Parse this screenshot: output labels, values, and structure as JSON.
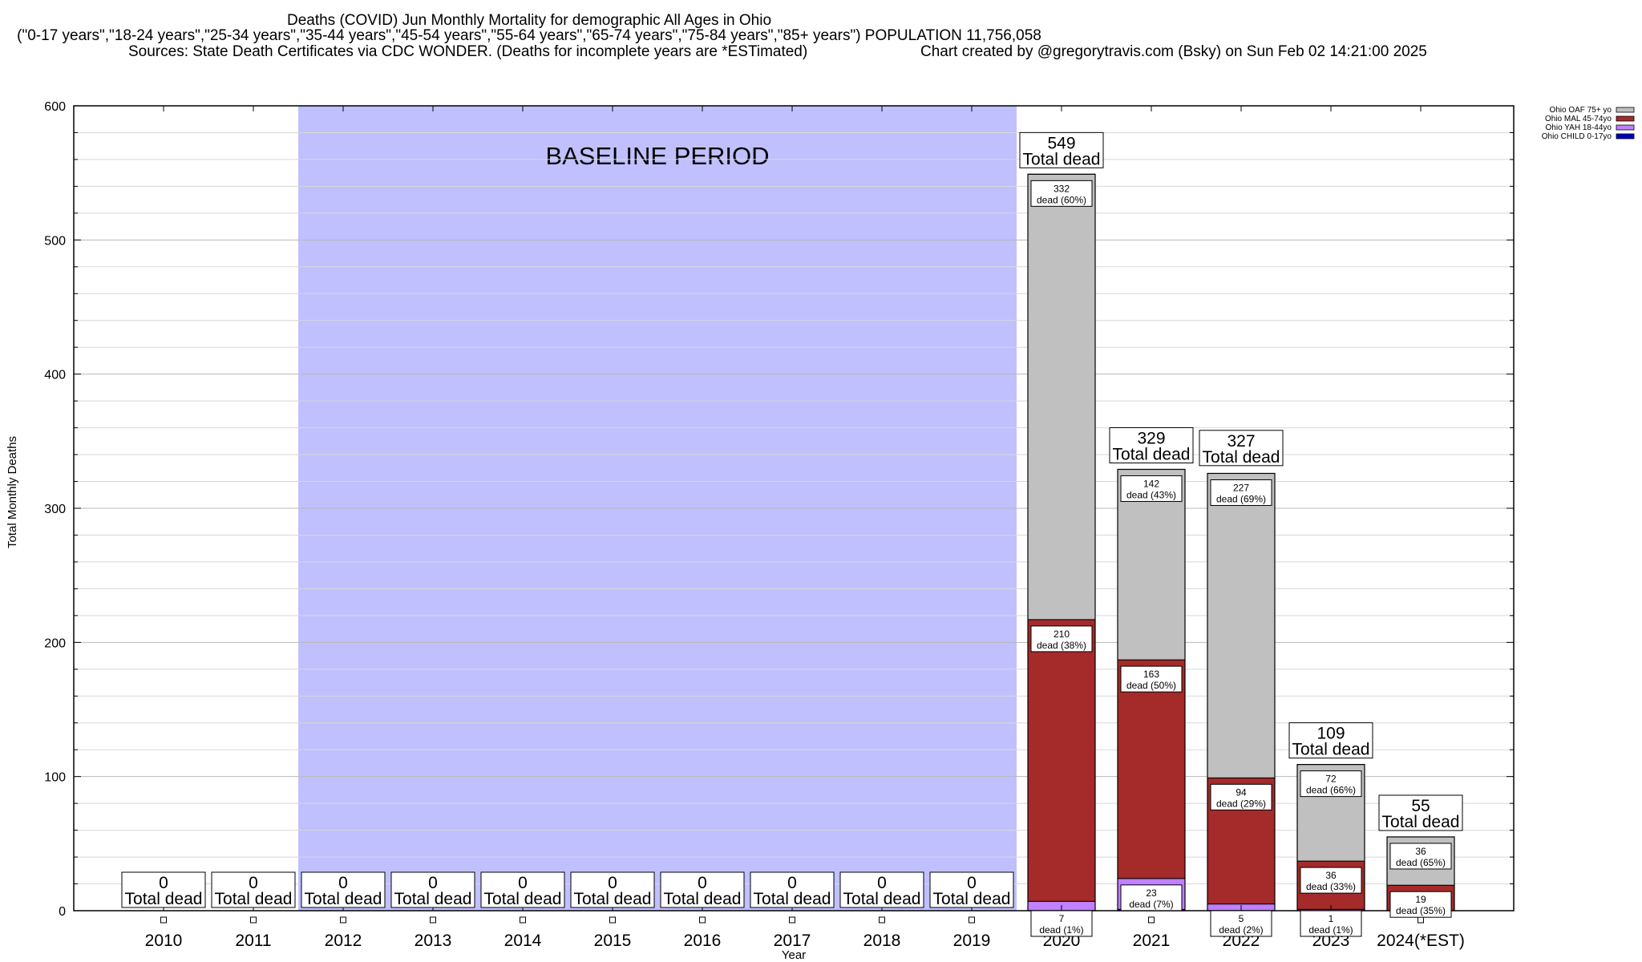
{
  "header": {
    "title_line1": "Deaths (COVID) Jun Monthly Mortality for demographic All Ages in Ohio",
    "title_line2": "(\"0-17 years\",\"18-24 years\",\"25-34 years\",\"35-44 years\",\"45-54 years\",\"55-64 years\",\"65-74 years\",\"75-84 years\",\"85+ years\") POPULATION 11,756,058",
    "sources": "Sources: State Death Certificates via CDC WONDER. (Deaths for incomplete years are *ESTimated)",
    "credit": "Chart created by @gregorytravis.com (Bsky) on Sun Feb 02 14:21:00 2025"
  },
  "chart_data": {
    "type": "bar",
    "stacked": true,
    "xlabel": "Year",
    "ylabel": "Total Monthly Deaths",
    "ylim": [
      0,
      600
    ],
    "y_ticks": [
      0,
      100,
      200,
      300,
      400,
      500,
      600
    ],
    "grid": true,
    "legend_position": "top-right",
    "categories": [
      "2010",
      "2011",
      "2012",
      "2013",
      "2014",
      "2015",
      "2016",
      "2017",
      "2018",
      "2019",
      "2020",
      "2021",
      "2022",
      "2023",
      "2024(*EST)"
    ],
    "totals": [
      0,
      0,
      0,
      0,
      0,
      0,
      0,
      0,
      0,
      0,
      549,
      329,
      327,
      109,
      55
    ],
    "total_suffix": "Total dead",
    "baseline_label": "BASELINE PERIOD",
    "baseline_range": [
      "2012",
      "2019"
    ],
    "series": [
      {
        "name": "Ohio CHILD 0-17yo",
        "color": "#0000c0",
        "values": [
          0,
          0,
          0,
          0,
          0,
          0,
          0,
          0,
          0,
          0,
          0,
          1,
          0,
          0,
          0
        ],
        "labels": [
          null,
          null,
          null,
          null,
          null,
          null,
          null,
          null,
          null,
          null,
          null,
          null,
          null,
          null,
          null
        ]
      },
      {
        "name": "Ohio YAH 18-44yo",
        "color": "#c080ff",
        "values": [
          0,
          0,
          0,
          0,
          0,
          0,
          0,
          0,
          0,
          0,
          7,
          23,
          5,
          1,
          0
        ],
        "labels": [
          null,
          null,
          null,
          null,
          null,
          null,
          null,
          null,
          null,
          null,
          "7 dead (1%)",
          "23 dead (7%)",
          "5 dead (2%)",
          "1 dead (1%)",
          null
        ]
      },
      {
        "name": "Ohio MAL 45-74yo",
        "color": "#a52a2a",
        "values": [
          0,
          0,
          0,
          0,
          0,
          0,
          0,
          0,
          0,
          0,
          210,
          163,
          94,
          36,
          19
        ],
        "labels": [
          null,
          null,
          null,
          null,
          null,
          null,
          null,
          null,
          null,
          null,
          "210 dead (38%)",
          "163 dead (50%)",
          "94 dead (29%)",
          "36 dead (33%)",
          "19 dead (35%)"
        ]
      },
      {
        "name": "Ohio OAF 75+ yo",
        "color": "#c0c0c0",
        "values": [
          0,
          0,
          0,
          0,
          0,
          0,
          0,
          0,
          0,
          0,
          332,
          142,
          227,
          72,
          36
        ],
        "labels": [
          null,
          null,
          null,
          null,
          null,
          null,
          null,
          null,
          null,
          null,
          "332 dead (60%)",
          "142 dead (43%)",
          "227 dead (69%)",
          "72 dead (66%)",
          "36 dead (65%)"
        ]
      }
    ]
  }
}
